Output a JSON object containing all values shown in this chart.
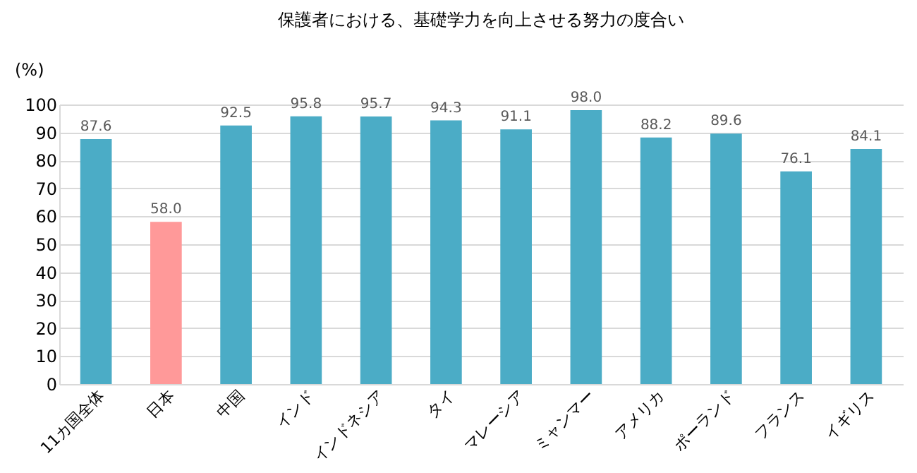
{
  "chart_data": {
    "type": "bar",
    "title": "保護者における、基礎学力を向上させる努力の度合い",
    "ylabel": "(%)",
    "categories": [
      "11カ国全体",
      "日本",
      "中国",
      "インド",
      "インドネシア",
      "タイ",
      "マレーシア",
      "ミャンマー",
      "アメリカ",
      "ポーランド",
      "フランス",
      "イギリス"
    ],
    "values": [
      87.6,
      58.0,
      92.5,
      95.8,
      95.7,
      94.3,
      91.1,
      98.0,
      88.2,
      89.6,
      76.1,
      84.1
    ],
    "colors": [
      "#4bacc6",
      "#ff9999",
      "#4bacc6",
      "#4bacc6",
      "#4bacc6",
      "#4bacc6",
      "#4bacc6",
      "#4bacc6",
      "#4bacc6",
      "#4bacc6",
      "#4bacc6",
      "#4bacc6"
    ],
    "ylim": [
      0,
      100
    ],
    "yticks": [
      0,
      10,
      20,
      30,
      40,
      50,
      60,
      70,
      80,
      90,
      100
    ],
    "value_labels": [
      "87.6",
      "58.0",
      "92.5",
      "95.8",
      "95.7",
      "94.3",
      "91.1",
      "98.0",
      "88.2",
      "89.6",
      "76.1",
      "84.1"
    ],
    "grid": "y",
    "legend": false
  }
}
